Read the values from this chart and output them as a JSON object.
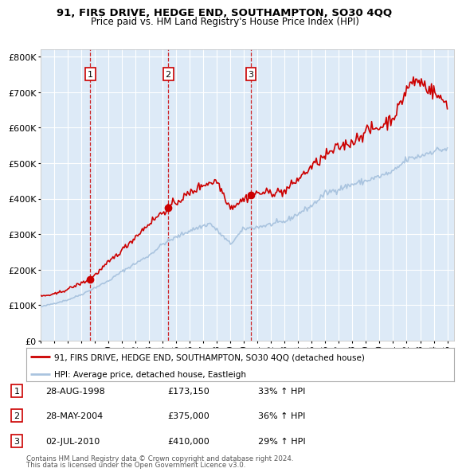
{
  "title": "91, FIRS DRIVE, HEDGE END, SOUTHAMPTON, SO30 4QQ",
  "subtitle": "Price paid vs. HM Land Registry's House Price Index (HPI)",
  "legend_line1": "91, FIRS DRIVE, HEDGE END, SOUTHAMPTON, SO30 4QQ (detached house)",
  "legend_line2": "HPI: Average price, detached house, Eastleigh",
  "footer1": "Contains HM Land Registry data © Crown copyright and database right 2024.",
  "footer2": "This data is licensed under the Open Government Licence v3.0.",
  "transactions": [
    {
      "num": 1,
      "date": "28-AUG-1998",
      "price": 173150,
      "year": 1998.66,
      "pct": "33%",
      "dir": "↑"
    },
    {
      "num": 2,
      "date": "28-MAY-2004",
      "price": 375000,
      "year": 2004.41,
      "pct": "36%",
      "dir": "↑"
    },
    {
      "num": 3,
      "date": "02-JUL-2010",
      "price": 410000,
      "year": 2010.5,
      "pct": "29%",
      "dir": "↑"
    }
  ],
  "hpi_color": "#aac4df",
  "price_color": "#cc0000",
  "dashed_color": "#cc0000",
  "plot_bg": "#ddeaf7",
  "grid_color": "#ffffff",
  "ylim": [
    0,
    820000
  ],
  "yticks": [
    0,
    100000,
    200000,
    300000,
    400000,
    500000,
    600000,
    700000,
    800000
  ],
  "xlim_start": 1995.0,
  "xlim_end": 2025.5
}
